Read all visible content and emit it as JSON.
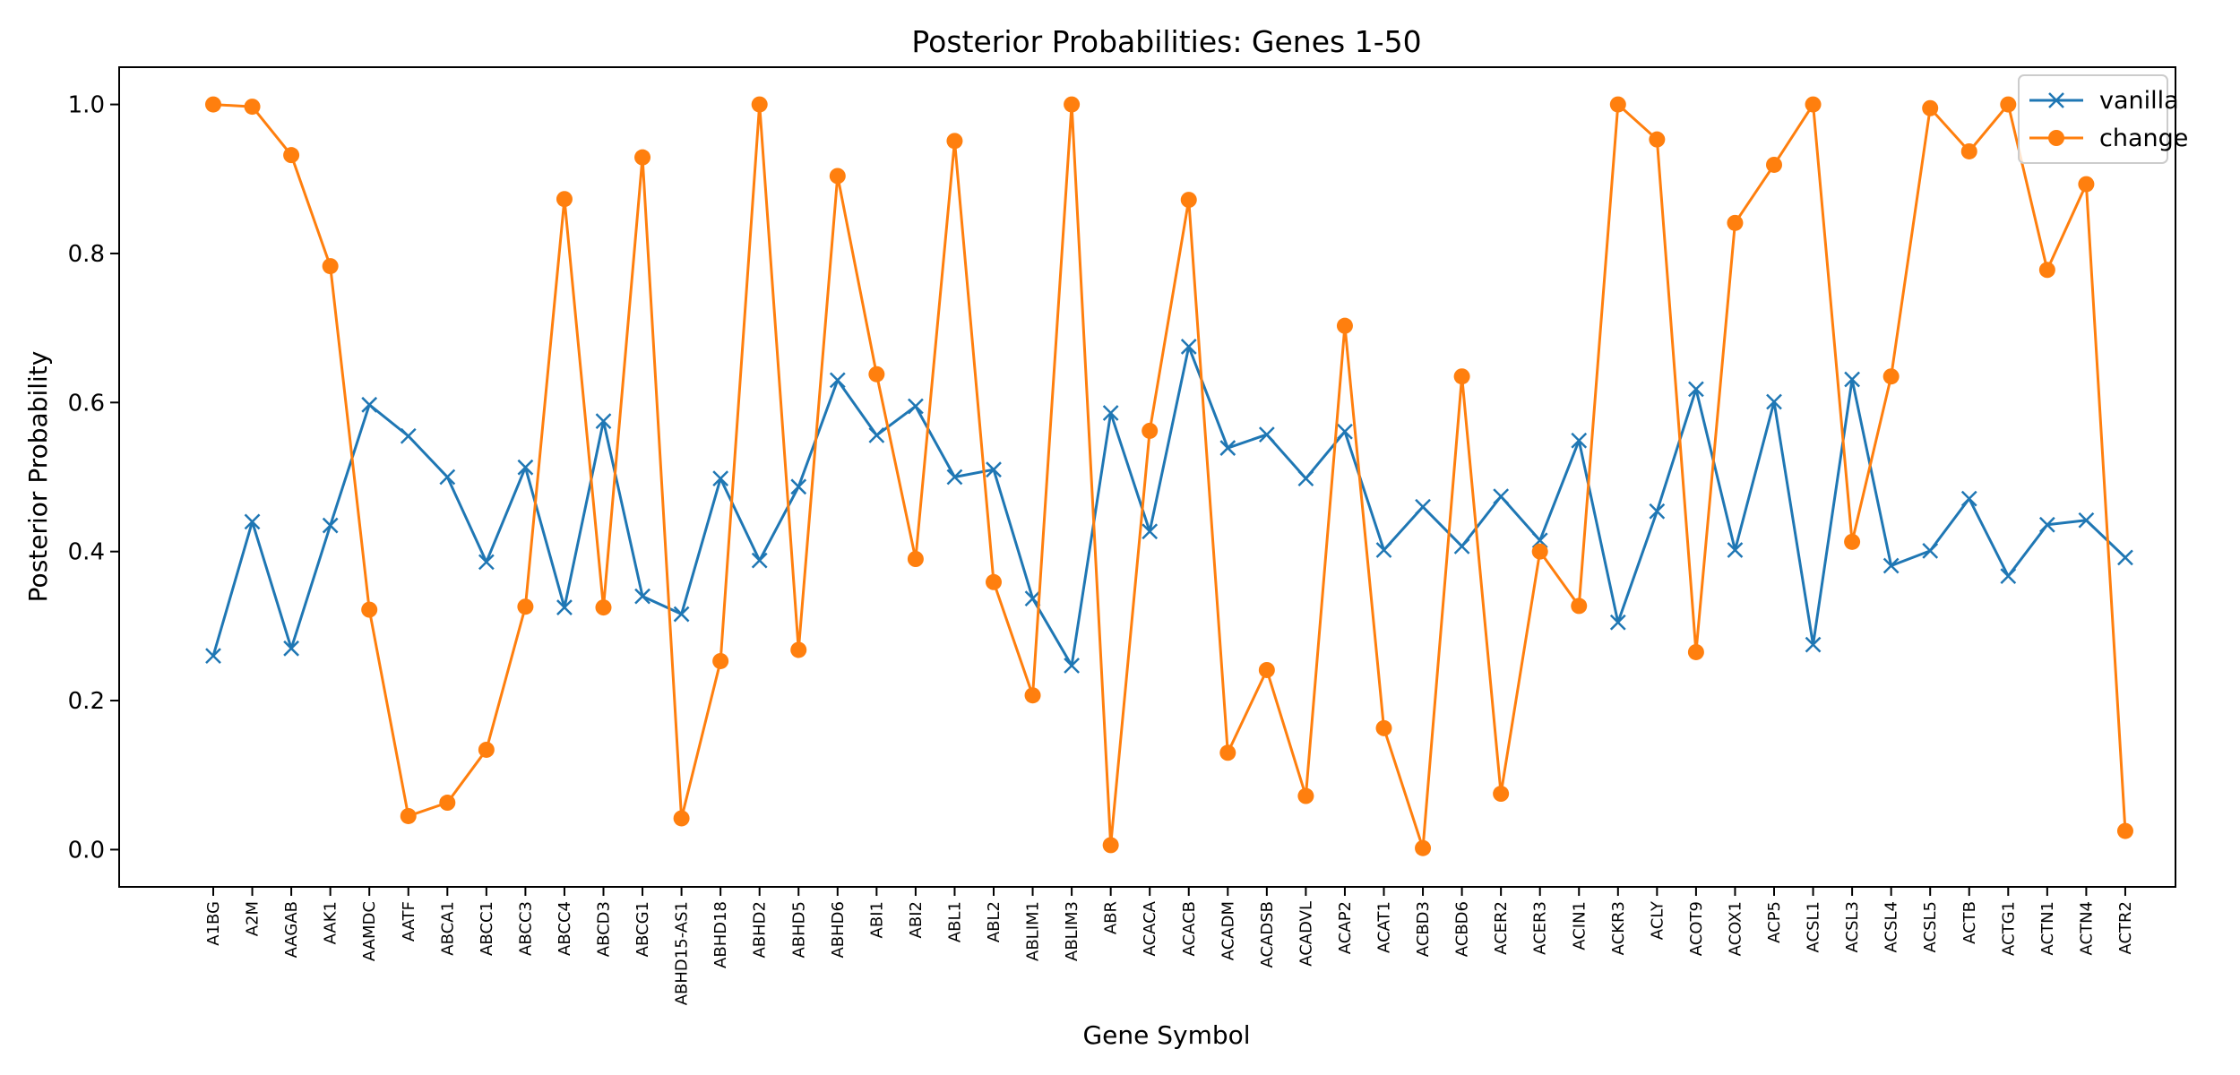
{
  "chart_data": {
    "type": "line",
    "title": "Posterior Probabilities: Genes 1-50",
    "xlabel": "Gene Symbol",
    "ylabel": "Posterior Probability",
    "ylim": [
      -0.05,
      1.05
    ],
    "yticks": [
      "0.0",
      "0.2",
      "0.4",
      "0.6",
      "0.8",
      "1.0"
    ],
    "grid": false,
    "legend_position": "top-right",
    "categories": [
      "A1BG",
      "A2M",
      "AAGAB",
      "AAK1",
      "AAMDC",
      "AATF",
      "ABCA1",
      "ABCC1",
      "ABCC3",
      "ABCC4",
      "ABCD3",
      "ABCG1",
      "ABHD15-AS1",
      "ABHD18",
      "ABHD2",
      "ABHD5",
      "ABHD6",
      "ABI1",
      "ABI2",
      "ABL1",
      "ABL2",
      "ABLIM1",
      "ABLIM3",
      "ABR",
      "ACACA",
      "ACACB",
      "ACADM",
      "ACADSB",
      "ACADVL",
      "ACAP2",
      "ACAT1",
      "ACBD3",
      "ACBD6",
      "ACER2",
      "ACER3",
      "ACIN1",
      "ACKR3",
      "ACLY",
      "ACOT9",
      "ACOX1",
      "ACP5",
      "ACSL1",
      "ACSL3",
      "ACSL4",
      "ACSL5",
      "ACTB",
      "ACTG1",
      "ACTN1",
      "ACTN4",
      "ACTR2"
    ],
    "series": [
      {
        "name": "vanilla",
        "color": "#1f77b4",
        "marker": "x",
        "values": [
          0.26,
          0.44,
          0.27,
          0.435,
          0.597,
          0.555,
          0.5,
          0.386,
          0.513,
          0.325,
          0.575,
          0.34,
          0.316,
          0.498,
          0.388,
          0.487,
          0.63,
          0.556,
          0.595,
          0.5,
          0.51,
          0.337,
          0.247,
          0.586,
          0.427,
          0.675,
          0.539,
          0.557,
          0.498,
          0.561,
          0.402,
          0.46,
          0.407,
          0.474,
          0.415,
          0.549,
          0.305,
          0.454,
          0.618,
          0.402,
          0.601,
          0.275,
          0.631,
          0.381,
          0.401,
          0.471,
          0.367,
          0.436,
          0.442,
          0.392
        ]
      },
      {
        "name": "change",
        "color": "#ff7f0e",
        "marker": "o",
        "values": [
          1.0,
          0.997,
          0.932,
          0.783,
          0.322,
          0.045,
          0.063,
          0.134,
          0.326,
          0.873,
          0.325,
          0.929,
          0.042,
          0.253,
          1.0,
          0.268,
          0.904,
          0.638,
          0.39,
          0.951,
          0.359,
          0.207,
          1.0,
          0.006,
          0.562,
          0.872,
          0.13,
          0.241,
          0.072,
          0.703,
          0.163,
          0.002,
          0.635,
          0.075,
          0.4,
          0.327,
          1.0,
          0.953,
          0.265,
          0.841,
          0.919,
          1.0,
          0.413,
          0.635,
          0.995,
          0.937,
          1.0,
          0.778,
          0.893,
          0.025
        ]
      }
    ]
  }
}
